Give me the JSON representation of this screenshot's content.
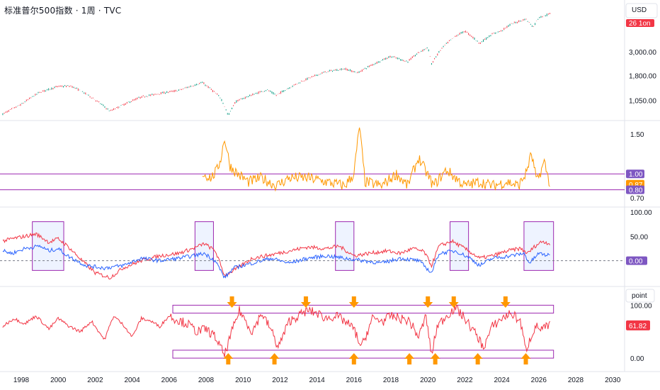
{
  "header": {
    "title": "标准普尔500指数 · 1周 · TVC"
  },
  "chart_data": [
    {
      "type": "line",
      "panel": "price",
      "currency_label": "USD",
      "price_tag": "26 1on",
      "y_ticks": [
        "3,000.00",
        "1,800.00",
        "1,050.00"
      ],
      "log_scale": true,
      "x": [
        1997.0,
        1998.0,
        1999.0,
        2000.0,
        2000.7,
        2001.7,
        2002.8,
        2003.5,
        2004.5,
        2005.5,
        2006.5,
        2007.8,
        2008.3,
        2008.8,
        2009.2,
        2009.6,
        2010.3,
        2011.3,
        2011.8,
        2012.5,
        2013.5,
        2014.5,
        2015.5,
        2016.2,
        2017.0,
        2018.0,
        2018.9,
        2019.5,
        2020.0,
        2020.2,
        2020.8,
        2021.5,
        2022.0,
        2022.8,
        2023.5,
        2024.0,
        2024.5,
        2025.3,
        2025.7,
        2026.0,
        2026.6
      ],
      "y": [
        780,
        960,
        1250,
        1420,
        1430,
        1150,
        830,
        950,
        1130,
        1220,
        1300,
        1540,
        1320,
        1100,
        750,
        1020,
        1150,
        1320,
        1170,
        1380,
        1680,
        1950,
        2080,
        1900,
        2270,
        2720,
        2420,
        2940,
        3300,
        2300,
        3300,
        4200,
        4700,
        3600,
        4400,
        4750,
        5450,
        6100,
        5100,
        6300,
        6800
      ],
      "y_ticks_values": [
        3000,
        1800,
        1050
      ]
    },
    {
      "type": "line",
      "panel": "ratio",
      "y_ticks": [
        "1.50",
        "1.00",
        "0.87",
        "0.80",
        "0.70"
      ],
      "ylim": [
        0.6,
        1.6
      ],
      "hlines": [
        1.0,
        0.8
      ],
      "current_value": "0.87",
      "x": [
        2007.8,
        2008.3,
        2008.6,
        2008.8,
        2009.0,
        2009.3,
        2009.7,
        2010.3,
        2011.0,
        2011.8,
        2012.5,
        2013.5,
        2014.5,
        2015.5,
        2016.0,
        2016.3,
        2016.6,
        2017.5,
        2018.3,
        2018.9,
        2019.5,
        2020.3,
        2021.0,
        2022.0,
        2022.8,
        2023.5,
        2024.3,
        2024.9,
        2025.3,
        2025.6,
        2025.9,
        2026.3,
        2026.6
      ],
      "y": [
        1.0,
        0.95,
        1.05,
        1.2,
        1.45,
        1.1,
        1.0,
        0.9,
        0.95,
        0.85,
        0.95,
        0.95,
        0.9,
        0.85,
        1.0,
        1.6,
        0.9,
        0.85,
        1.0,
        0.85,
        1.2,
        0.85,
        1.05,
        0.85,
        0.9,
        0.85,
        0.9,
        0.85,
        1.0,
        1.25,
        0.9,
        1.15,
        0.87
      ]
    },
    {
      "type": "line",
      "panel": "breadth",
      "y_ticks": [
        "100.00",
        "50.00",
        "0.00"
      ],
      "ylim": [
        -50,
        110
      ],
      "series": [
        {
          "color": "#f23645",
          "x": [
            1997.0,
            1997.5,
            1998.2,
            1998.8,
            1999.5,
            2000.0,
            2000.5,
            2001.3,
            2002.0,
            2002.8,
            2003.5,
            2004.5,
            2005.5,
            2006.5,
            2007.3,
            2007.9,
            2008.5,
            2009.0,
            2009.5,
            2010.5,
            2011.5,
            2012.5,
            2013.5,
            2014.5,
            2015.2,
            2016.0,
            2016.8,
            2017.8,
            2018.5,
            2019.2,
            2019.8,
            2020.2,
            2020.6,
            2021.3,
            2022.0,
            2022.8,
            2023.5,
            2024.3,
            2025.0,
            2025.4,
            2025.8,
            2026.2,
            2026.6
          ],
          "y": [
            40,
            45,
            50,
            55,
            38,
            45,
            30,
            0,
            -25,
            -35,
            -15,
            0,
            10,
            15,
            25,
            35,
            20,
            -30,
            -20,
            5,
            12,
            20,
            28,
            25,
            30,
            10,
            15,
            20,
            15,
            25,
            18,
            -10,
            30,
            40,
            25,
            5,
            10,
            20,
            25,
            15,
            30,
            40,
            35
          ]
        },
        {
          "color": "#2962ff",
          "x": [
            1997.0,
            1997.5,
            1998.2,
            1999.0,
            1999.5,
            2000.0,
            2000.5,
            2001.5,
            2002.5,
            2003.5,
            2004.5,
            2005.5,
            2006.5,
            2007.3,
            2007.9,
            2008.5,
            2009.0,
            2009.5,
            2010.5,
            2011.5,
            2012.5,
            2013.5,
            2014.5,
            2015.5,
            2016.5,
            2017.5,
            2018.5,
            2019.5,
            2020.2,
            2020.6,
            2021.5,
            2022.3,
            2022.8,
            2023.5,
            2024.5,
            2025.2,
            2025.5,
            2026.0,
            2026.6
          ],
          "y": [
            20,
            15,
            25,
            30,
            20,
            25,
            10,
            -10,
            -15,
            -10,
            5,
            0,
            5,
            10,
            15,
            0,
            -35,
            -15,
            -5,
            5,
            -5,
            5,
            10,
            5,
            0,
            -5,
            5,
            0,
            -25,
            15,
            20,
            5,
            -10,
            5,
            10,
            15,
            -5,
            15,
            10
          ]
        }
      ],
      "current_value": "0.00"
    },
    {
      "type": "line",
      "panel": "oscillator",
      "scale_label": "point",
      "y_ticks": [
        "100.00",
        "0.00"
      ],
      "ylim": [
        -20,
        130
      ],
      "current_value": "61.82",
      "x": [
        1997.0,
        1997.6,
        1998.2,
        1998.8,
        1999.5,
        2000.0,
        2000.6,
        2001.2,
        2001.8,
        2002.5,
        2003.0,
        2003.6,
        2004.0,
        2004.5,
        2005.0,
        2005.5,
        2006.0,
        2006.6,
        2007.0,
        2007.5,
        2008.0,
        2008.5,
        2009.0,
        2009.3,
        2009.8,
        2010.5,
        2011.0,
        2011.5,
        2011.9,
        2012.5,
        2013.0,
        2013.5,
        2014.0,
        2014.5,
        2015.0,
        2015.5,
        2016.0,
        2016.4,
        2017.0,
        2017.6,
        2018.0,
        2018.5,
        2019.0,
        2019.5,
        2019.9,
        2020.2,
        2020.5,
        2021.0,
        2021.5,
        2022.0,
        2022.7,
        2023.0,
        2023.5,
        2024.0,
        2024.5,
        2025.0,
        2025.3,
        2025.8,
        2026.2,
        2026.6
      ],
      "y": [
        60,
        75,
        65,
        80,
        55,
        75,
        60,
        50,
        70,
        35,
        80,
        60,
        40,
        75,
        70,
        60,
        80,
        70,
        65,
        50,
        55,
        40,
        5,
        40,
        90,
        50,
        85,
        55,
        20,
        70,
        80,
        90,
        85,
        75,
        80,
        70,
        55,
        20,
        75,
        70,
        80,
        75,
        70,
        40,
        80,
        5,
        60,
        80,
        95,
        75,
        40,
        20,
        60,
        75,
        85,
        70,
        15,
        60,
        55,
        61.82
      ],
      "boxes_y": [
        [
          85,
          100
        ],
        [
          0,
          15
        ]
      ]
    }
  ],
  "x_axis": {
    "labels": [
      "1998",
      "2000",
      "2002",
      "2004",
      "2006",
      "2008",
      "2010",
      "2012",
      "2014",
      "2016",
      "2018",
      "2020",
      "2022",
      "2024",
      "2026",
      "2028",
      "2030"
    ],
    "values": [
      1998,
      2000,
      2002,
      2004,
      2006,
      2008,
      2010,
      2012,
      2014,
      2016,
      2018,
      2020,
      2022,
      2024,
      2026,
      2028,
      2030
    ]
  },
  "annotations": {
    "breadth_highlight_years": [
      [
        1998.6,
        2000.3
      ],
      [
        2007.4,
        2008.4
      ],
      [
        2015.0,
        2016.0
      ],
      [
        2021.2,
        2022.2
      ],
      [
        2025.2,
        2026.8
      ]
    ],
    "down_arrows_years": [
      2009.4,
      2013.4,
      2016.0,
      2020.0,
      2021.4,
      2024.2
    ],
    "up_arrows_years": [
      2009.2,
      2011.7,
      2016.0,
      2019.0,
      2020.4,
      2022.7,
      2025.3
    ],
    "colors": {
      "up": "#089981",
      "down": "#f23645",
      "ratio": "#ff9800",
      "band": "#9c27b0",
      "arrow": "#ff9800"
    }
  },
  "tags": {
    "ratio_100": "1.00",
    "ratio_cur": "0.87",
    "ratio_080": "0.80",
    "breadth_zero": "0.00",
    "osc_cur": "61.82"
  }
}
